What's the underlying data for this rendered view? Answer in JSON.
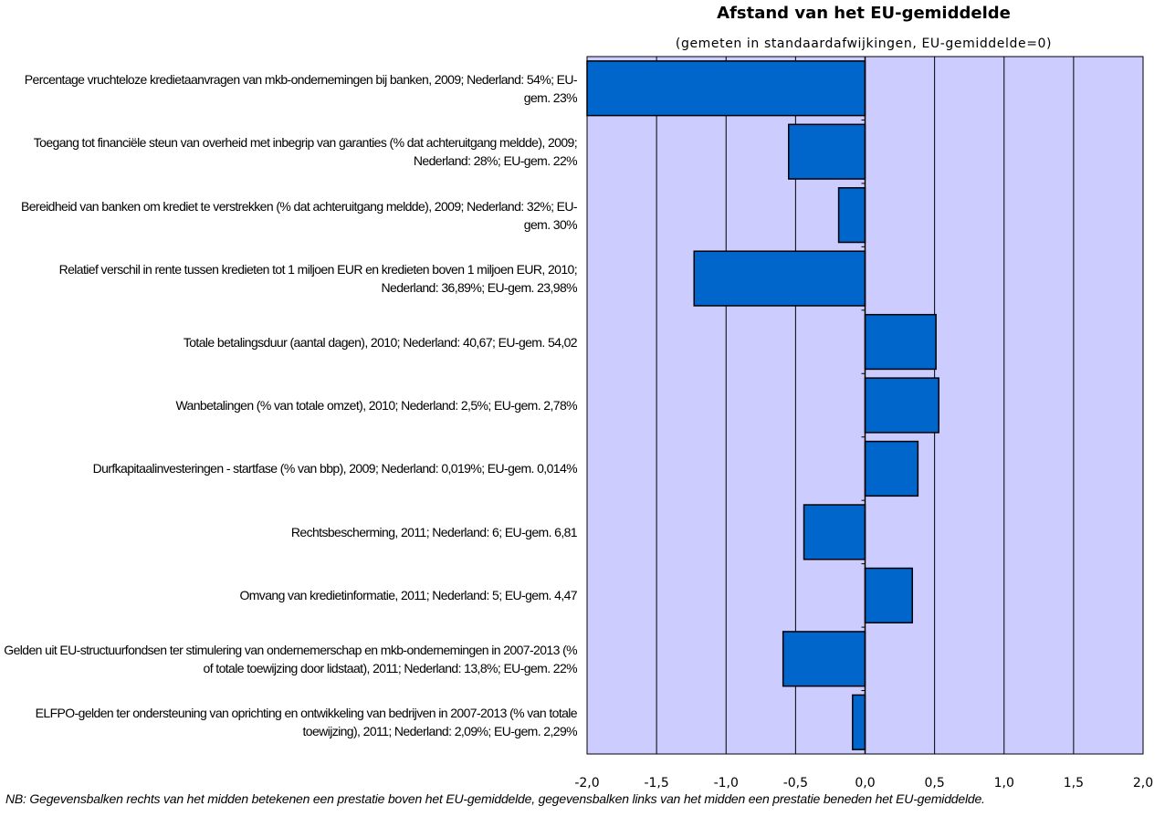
{
  "chart_data": {
    "type": "barh",
    "title": "Afstand van het EU-gemiddelde",
    "subtitle": "(gemeten in standaardafwijkingen, EU-gemiddelde=0)",
    "categories": [
      "Percentage vruchteloze kredietaanvragen van mkb-ondernemingen bij banken, 2009; Nederland: 54%; EU-gem. 23%",
      "Toegang tot financiële steun van overheid met inbegrip van garanties (% dat achteruitgang meldde), 2009; Nederland: 28%; EU-gem. 22%",
      "Bereidheid van banken om krediet te verstrekken (% dat achteruitgang meldde), 2009; Nederland: 32%; EU-gem. 30%",
      "Relatief verschil in rente tussen kredieten tot 1 miljoen EUR en kredieten boven 1 miljoen EUR, 2010; Nederland: 36,89%; EU-gem. 23,98%",
      "Totale betalingsduur (aantal dagen), 2010; Nederland: 40,67; EU-gem. 54,02",
      "Wanbetalingen (% van totale omzet), 2010; Nederland: 2,5%; EU-gem. 2,78%",
      "Durfkapitaalinvesteringen - startfase (% van bbp), 2009; Nederland: 0,019%; EU-gem. 0,014%",
      "Rechtsbescherming, 2011; Nederland: 6; EU-gem. 6,81",
      "Omvang van kredietinformatie, 2011; Nederland: 5; EU-gem. 4,47",
      "Gelden uit EU-structuurfondsen ter stimulering van ondernemerschap en mkb-ondernemingen in 2007-2013 (% of totale toewijzing door lidstaat), 2011; Nederland: 13,8%; EU-gem. 22%",
      "ELFPO-gelden ter ondersteuning van oprichting en ontwikkeling van bedrijven in 2007-2013 (% van totale toewijzing), 2011; Nederland: 2,09%; EU-gem. 2,29%"
    ],
    "values": [
      -2.0,
      -0.55,
      -0.19,
      -1.23,
      0.51,
      0.53,
      0.38,
      -0.44,
      0.34,
      -0.59,
      -0.09
    ],
    "color": "#0066cc",
    "plot_background": "#ccccff",
    "xlim": [
      -2,
      2
    ],
    "xticks": [
      {
        "value": -2,
        "label": "-2,0"
      },
      {
        "value": -1.5,
        "label": "-1,5"
      },
      {
        "value": -1,
        "label": "-1,0"
      },
      {
        "value": -0.5,
        "label": "-0,5"
      },
      {
        "value": 0,
        "label": "0,0"
      },
      {
        "value": 0.5,
        "label": "0,5"
      },
      {
        "value": 1,
        "label": "1,0"
      },
      {
        "value": 1.5,
        "label": "1,5"
      },
      {
        "value": 2,
        "label": "2,0"
      }
    ],
    "grid": true,
    "note": "NB: Gegevensbalken rechts van het midden betekenen een prestatie boven het EU-gemiddelde, gegevensbalken links van het midden een prestatie beneden het EU-gemiddelde."
  }
}
